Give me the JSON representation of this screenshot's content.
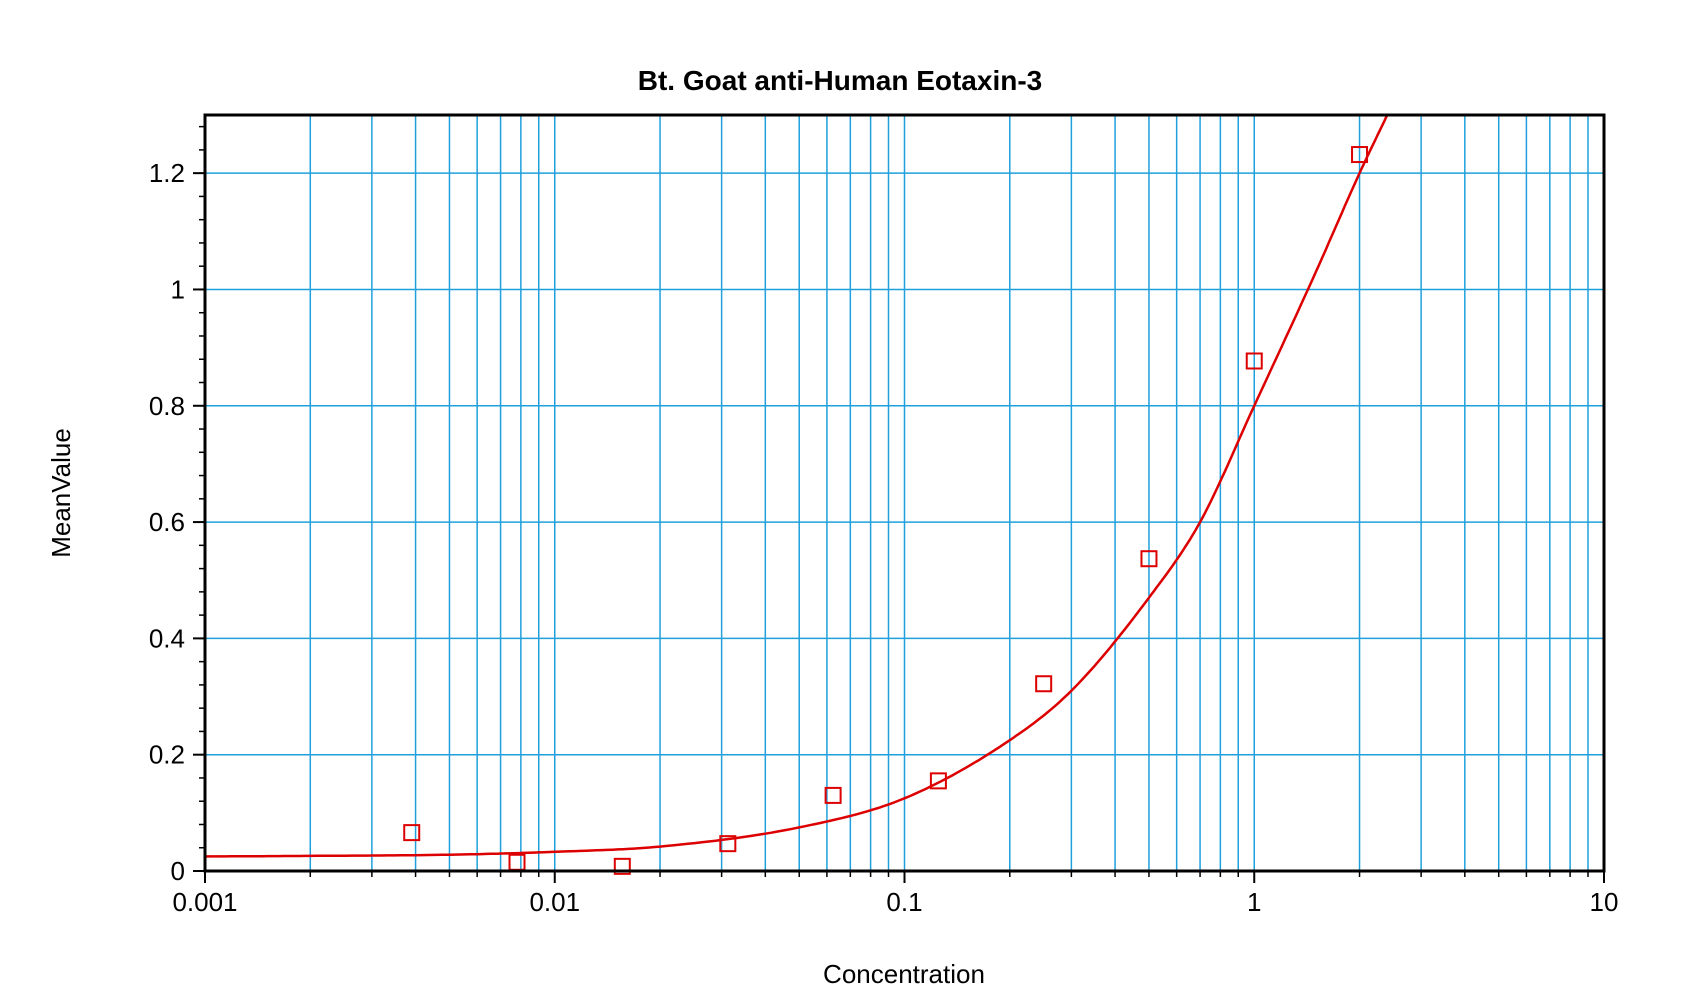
{
  "chart_data": {
    "type": "scatter",
    "title": "Bt. Goat anti-Human Eotaxin-3",
    "xlabel": "Concentration",
    "ylabel": "MeanValue",
    "x_scale": "log",
    "xlim": [
      0.001,
      10
    ],
    "ylim": [
      0,
      1.3
    ],
    "x_ticks": [
      {
        "value": 0.001,
        "label": "0.001"
      },
      {
        "value": 0.01,
        "label": "0.01"
      },
      {
        "value": 0.1,
        "label": "0.1"
      },
      {
        "value": 1,
        "label": "1"
      },
      {
        "value": 10,
        "label": "10"
      }
    ],
    "y_ticks": [
      {
        "value": 0,
        "label": "0"
      },
      {
        "value": 0.2,
        "label": "0.2"
      },
      {
        "value": 0.4,
        "label": "0.4"
      },
      {
        "value": 0.6,
        "label": "0.6"
      },
      {
        "value": 0.8,
        "label": "0.8"
      },
      {
        "value": 1,
        "label": "1"
      },
      {
        "value": 1.2,
        "label": "1.2"
      }
    ],
    "grid": true,
    "legend": "none",
    "colors": {
      "grid": "#1fa0dc",
      "series": "#dd0000",
      "frame": "#000000"
    },
    "series": [
      {
        "marker": "open-square",
        "x": [
          0.0039,
          0.0078,
          0.0156,
          0.03125,
          0.0625,
          0.125,
          0.25,
          0.5,
          1.0,
          2.0
        ],
        "y": [
          0.066,
          0.015,
          0.008,
          0.047,
          0.13,
          0.155,
          0.322,
          0.537,
          0.877,
          1.232
        ]
      }
    ],
    "fit_curve": {
      "style": "line",
      "x": [
        0.001,
        0.002,
        0.005,
        0.01,
        0.02,
        0.05,
        0.1,
        0.2,
        0.3,
        0.5,
        0.7,
        1.0,
        1.5,
        2.0,
        2.4
      ],
      "y": [
        0.025,
        0.026,
        0.028,
        0.033,
        0.042,
        0.075,
        0.125,
        0.225,
        0.31,
        0.47,
        0.6,
        0.8,
        1.03,
        1.2,
        1.3
      ]
    }
  }
}
